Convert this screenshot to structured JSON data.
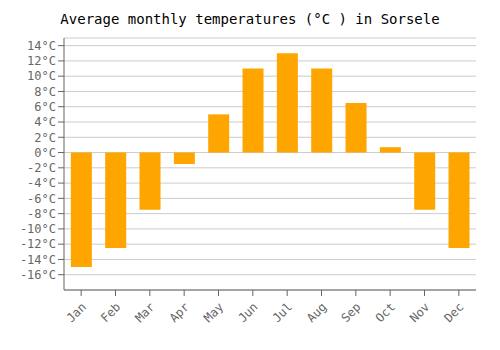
{
  "chart_data": {
    "type": "bar",
    "title": "Average monthly temperatures (°C ) in Sorsele",
    "categories": [
      "Jan",
      "Feb",
      "Mar",
      "Apr",
      "May",
      "Jun",
      "Jul",
      "Aug",
      "Sep",
      "Oct",
      "Nov",
      "Dec"
    ],
    "values": [
      -15,
      -12.5,
      -7.5,
      -1.5,
      5,
      11,
      13,
      11,
      6.5,
      0.7,
      -7.5,
      -12.5
    ],
    "color": "#FFA500",
    "ylim": [
      -18,
      15
    ],
    "yticks": [
      {
        "value": -16,
        "label": "-16°C"
      },
      {
        "value": -14,
        "label": "-14°C"
      },
      {
        "value": -12,
        "label": "-12°C"
      },
      {
        "value": -10,
        "label": "-10°C"
      },
      {
        "value": -8,
        "label": "-8°C"
      },
      {
        "value": -6,
        "label": "-6°C"
      },
      {
        "value": -4,
        "label": "-4°C"
      },
      {
        "value": -2,
        "label": "-2°C"
      },
      {
        "value": 0,
        "label": "0°C"
      },
      {
        "value": 2,
        "label": "2°C"
      },
      {
        "value": 4,
        "label": "4°C"
      },
      {
        "value": 6,
        "label": "6°C"
      },
      {
        "value": 8,
        "label": "8°C"
      },
      {
        "value": 10,
        "label": "10°C"
      },
      {
        "value": 12,
        "label": "12°C"
      },
      {
        "value": 14,
        "label": "14°C"
      }
    ],
    "grid": true
  }
}
